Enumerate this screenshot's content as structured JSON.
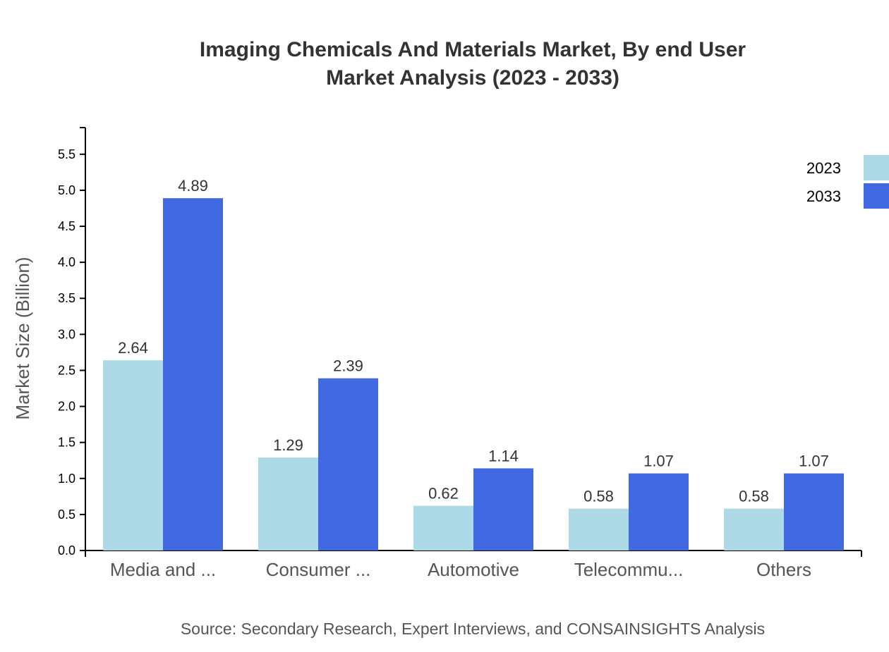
{
  "chart_data": {
    "type": "bar",
    "title_lines": [
      "Imaging Chemicals And Materials Market, By end User",
      "Market Analysis (2023 - 2033)"
    ],
    "xlabel": "",
    "ylabel": "Market Size (Billion)",
    "ylim": [
      0,
      5.87
    ],
    "yticks": [
      "0.0",
      "0.5",
      "1.0",
      "1.5",
      "2.0",
      "2.5",
      "3.0",
      "3.5",
      "4.0",
      "4.5",
      "5.0",
      "5.5"
    ],
    "categories": [
      "Media and ...",
      "Consumer ...",
      "Automotive",
      "Telecommu...",
      "Others"
    ],
    "series": [
      {
        "name": "2023",
        "color": "#add8e6",
        "values": [
          2.64,
          1.29,
          0.62,
          0.58,
          0.58
        ]
      },
      {
        "name": "2033",
        "color": "#4169e1",
        "values": [
          4.89,
          2.39,
          1.14,
          1.07,
          1.07
        ]
      }
    ],
    "legend_placement": "top-right",
    "grid": false,
    "source": "Source: Secondary Research, Expert Interviews, and CONSAINSIGHTS Analysis"
  }
}
